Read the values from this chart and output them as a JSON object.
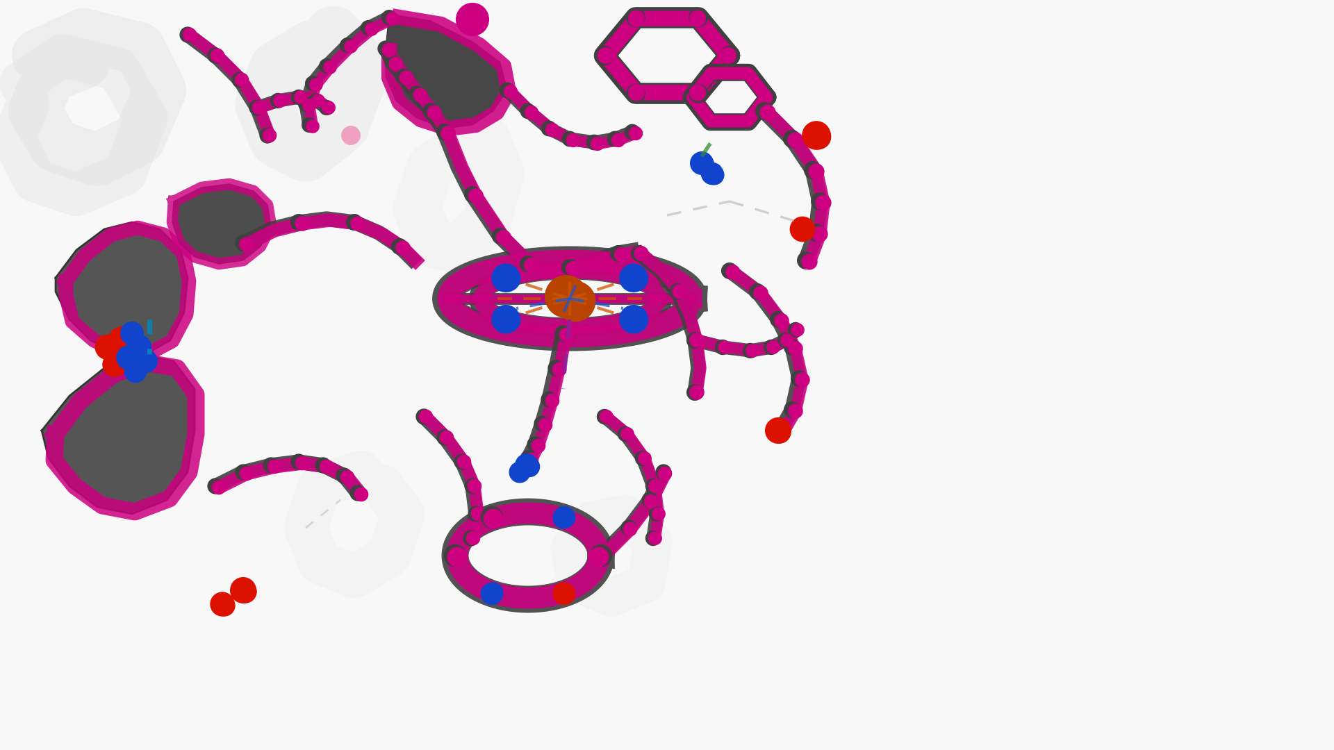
{
  "background_color": "#f8f8f8",
  "colors": {
    "t_state": "#404040",
    "r_state": "#cc0080",
    "iron": "#b84400",
    "oxygen_red": "#dd1100",
    "nitrogen_blue": "#1144cc",
    "gray_ribbon": "#888888",
    "dashed_orange": "#cc5500",
    "dashed_blue": "#2255cc",
    "dashed_gray": "#aaaaaa",
    "cyan_bond": "#0088bb",
    "green_bond": "#338833",
    "purple_bond": "#882299",
    "ghost": "#cccccc",
    "ghost_pink": "#e8b0cc"
  },
  "figsize": [
    19.2,
    10.8
  ],
  "dpi": 100
}
